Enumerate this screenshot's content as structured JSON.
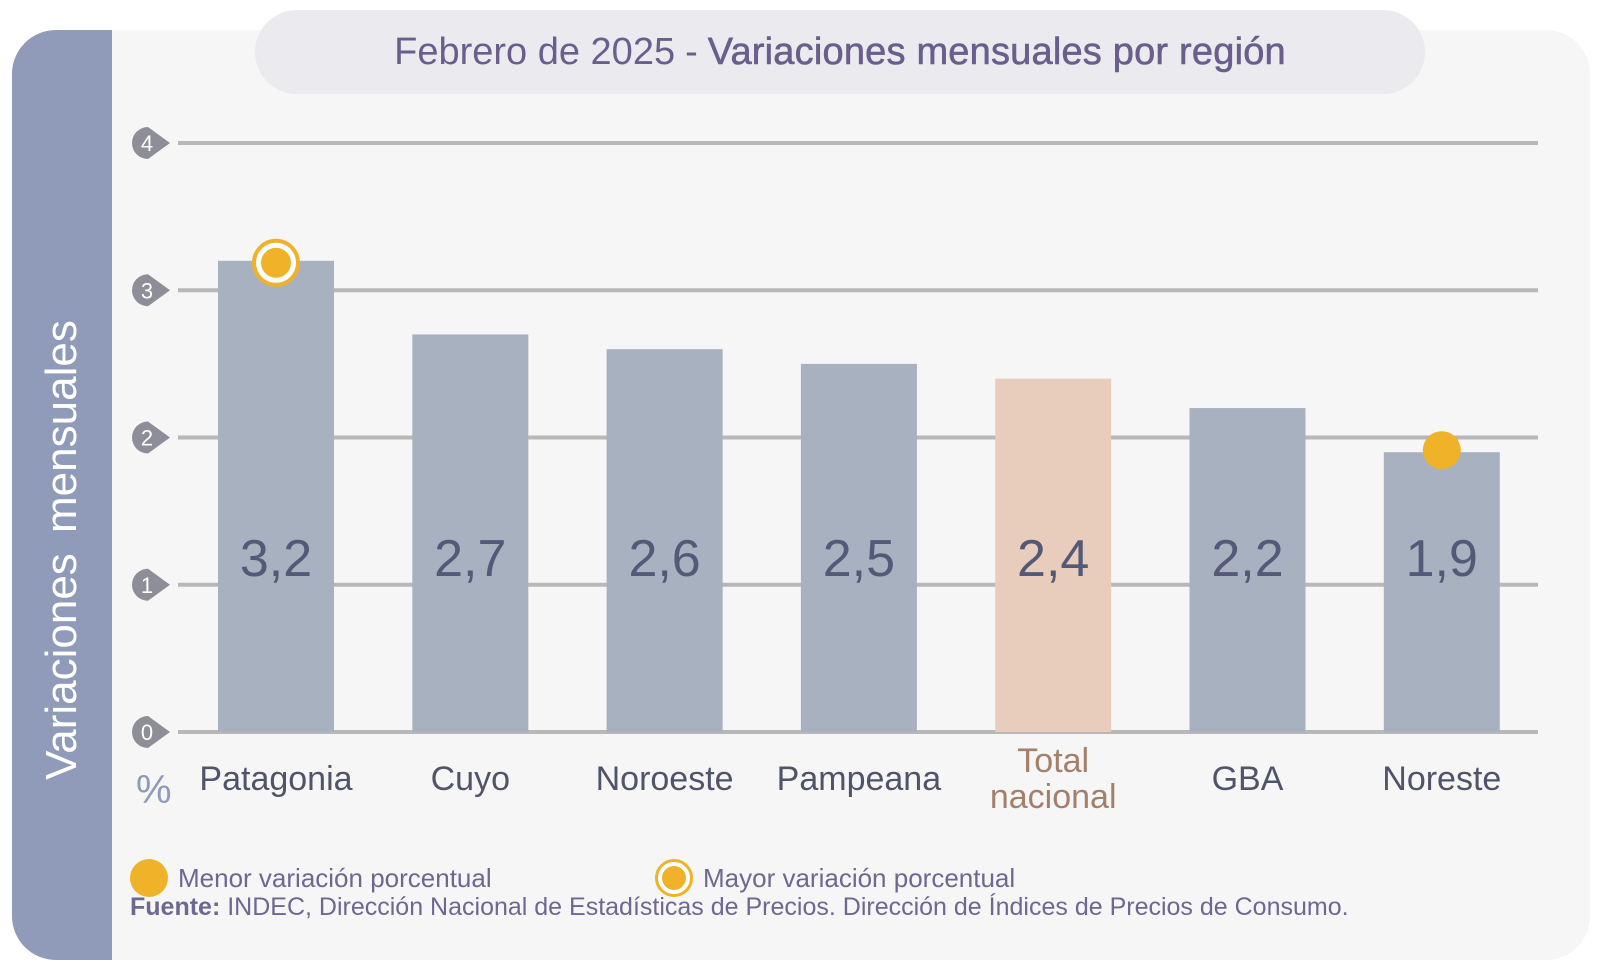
{
  "title": {
    "period": "Febrero de 2025",
    "separator": "-",
    "main": "Variaciones mensuales por región"
  },
  "sidebar_label": "Variaciones mensuales",
  "unit_label": "%",
  "chart_data": {
    "type": "bar",
    "categories": [
      "Patagonia",
      "Cuyo",
      "Noroeste",
      "Pampeana",
      "Total nacional",
      "GBA",
      "Noreste"
    ],
    "category_lines": [
      [
        "Patagonia"
      ],
      [
        "Cuyo"
      ],
      [
        "Noroeste"
      ],
      [
        "Pampeana"
      ],
      [
        "Total",
        "nacional"
      ],
      [
        "GBA"
      ],
      [
        "Noreste"
      ]
    ],
    "values": [
      3.2,
      2.7,
      2.6,
      2.5,
      2.4,
      2.2,
      1.9
    ],
    "value_labels": [
      "3,2",
      "2,7",
      "2,6",
      "2,5",
      "2,4",
      "2,2",
      "1,9"
    ],
    "ylim": [
      0,
      4
    ],
    "yticks": [
      0,
      1,
      2,
      3,
      4
    ],
    "grid": true,
    "highlight_category": "Total nacional",
    "max_marker_category": "Patagonia",
    "min_marker_category": "Noreste",
    "colors": {
      "bar": "#a7b1bf",
      "bar_highlight": "#e8cdbd",
      "grid": "#b8b8b8",
      "tick_badge": "#8e8e98",
      "value_label": "#535977",
      "category_label": "#505468",
      "category_highlight": "#a4806a",
      "marker": "#f0b229"
    }
  },
  "legend": {
    "min_label": "Menor variación porcentual",
    "max_label": "Mayor variación porcentual"
  },
  "source": {
    "label": "Fuente:",
    "text": "INDEC, Dirección Nacional de Estadísticas de Precios. Dirección de Índices de Precios de Consumo."
  }
}
